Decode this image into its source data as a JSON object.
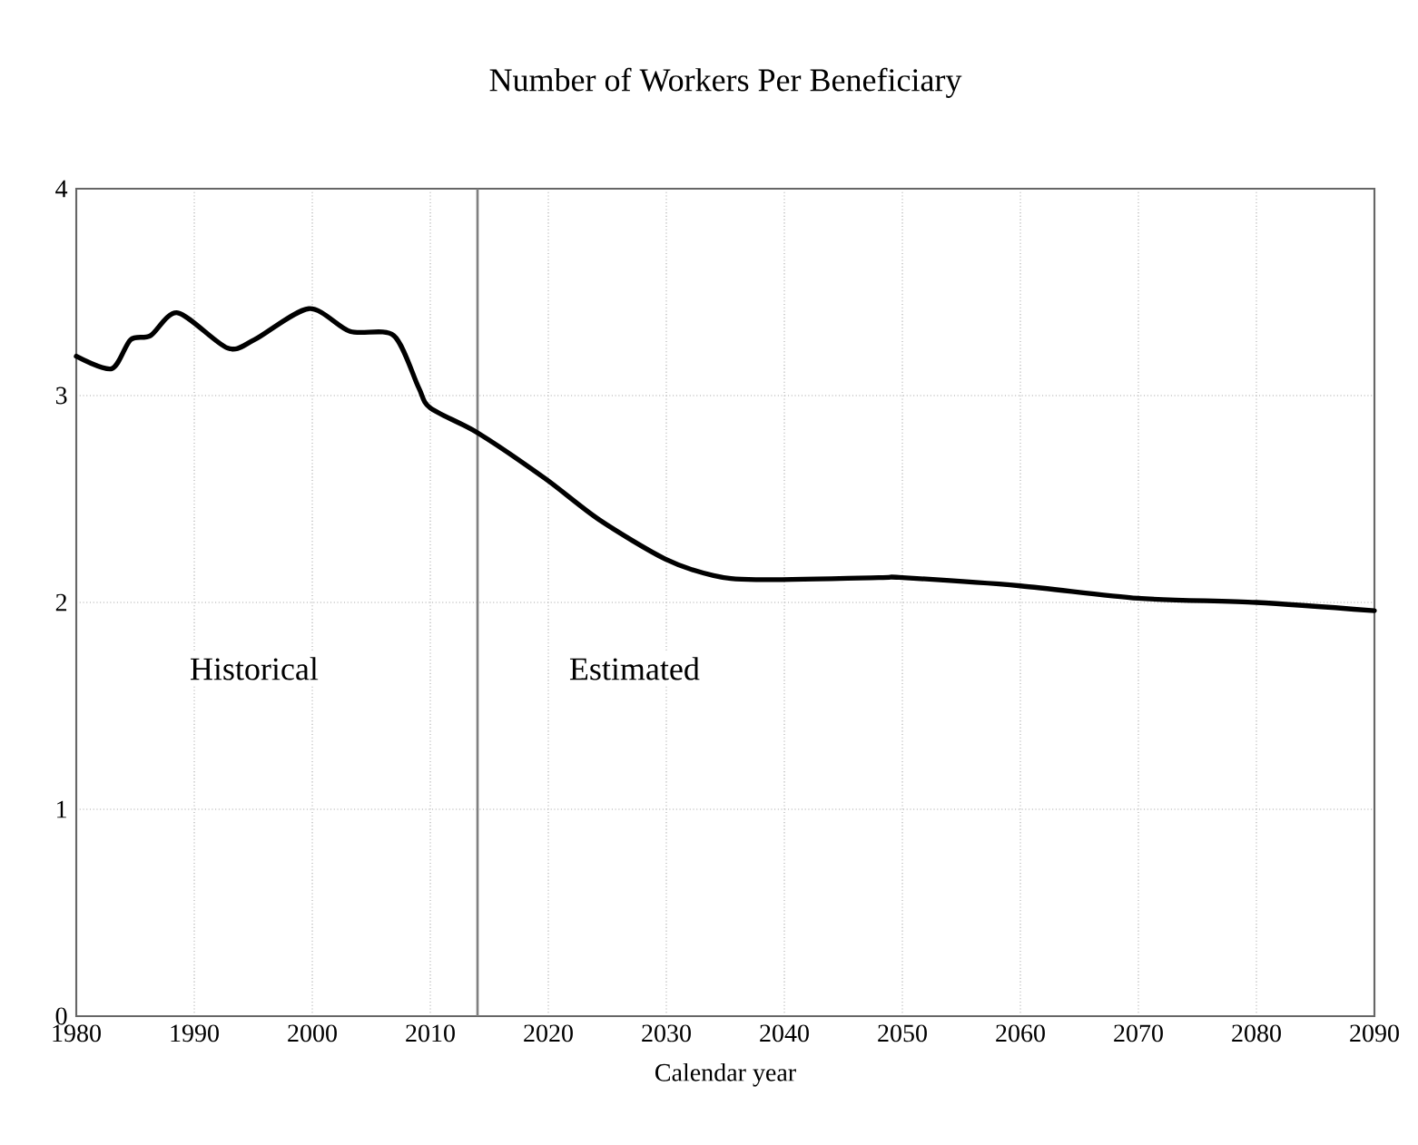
{
  "chart_data": {
    "type": "line",
    "title": "Number of Workers Per Beneficiary",
    "xlabel": "Calendar year",
    "x": [
      1980,
      1983,
      1984.6,
      1986.3,
      1988.6,
      1992.8,
      1995.1,
      1999.7,
      2003.2,
      2006.9,
      2009,
      2010,
      2014,
      2019.7,
      2024.3,
      2029.9,
      2034,
      2037.6,
      2048,
      2050,
      2060,
      2070,
      2080,
      2090
    ],
    "series": [
      {
        "color": "#000000",
        "values": [
          3.19,
          3.13,
          3.27,
          3.29,
          3.4,
          3.23,
          3.27,
          3.42,
          3.31,
          3.29,
          3.04,
          2.94,
          2.82,
          2.6,
          2.4,
          2.21,
          2.13,
          2.11,
          2.12,
          2.12,
          2.08,
          2.02,
          2.0,
          1.96
        ]
      }
    ],
    "xlim": [
      1980,
      2090
    ],
    "xticks": [
      1980,
      1990,
      2000,
      2010,
      2020,
      2030,
      2040,
      2050,
      2060,
      2070,
      2080,
      2090
    ],
    "ylim": [
      0,
      4
    ],
    "yticks": [
      0,
      1,
      2,
      3,
      4
    ],
    "grid": true,
    "line_style": "solid",
    "marker": "none",
    "ref_lines": [
      {
        "axis": "x",
        "value": 2014,
        "color": "#808080",
        "line_style": "solid"
      }
    ],
    "annotations": [
      "Historical",
      "Estimated"
    ]
  }
}
